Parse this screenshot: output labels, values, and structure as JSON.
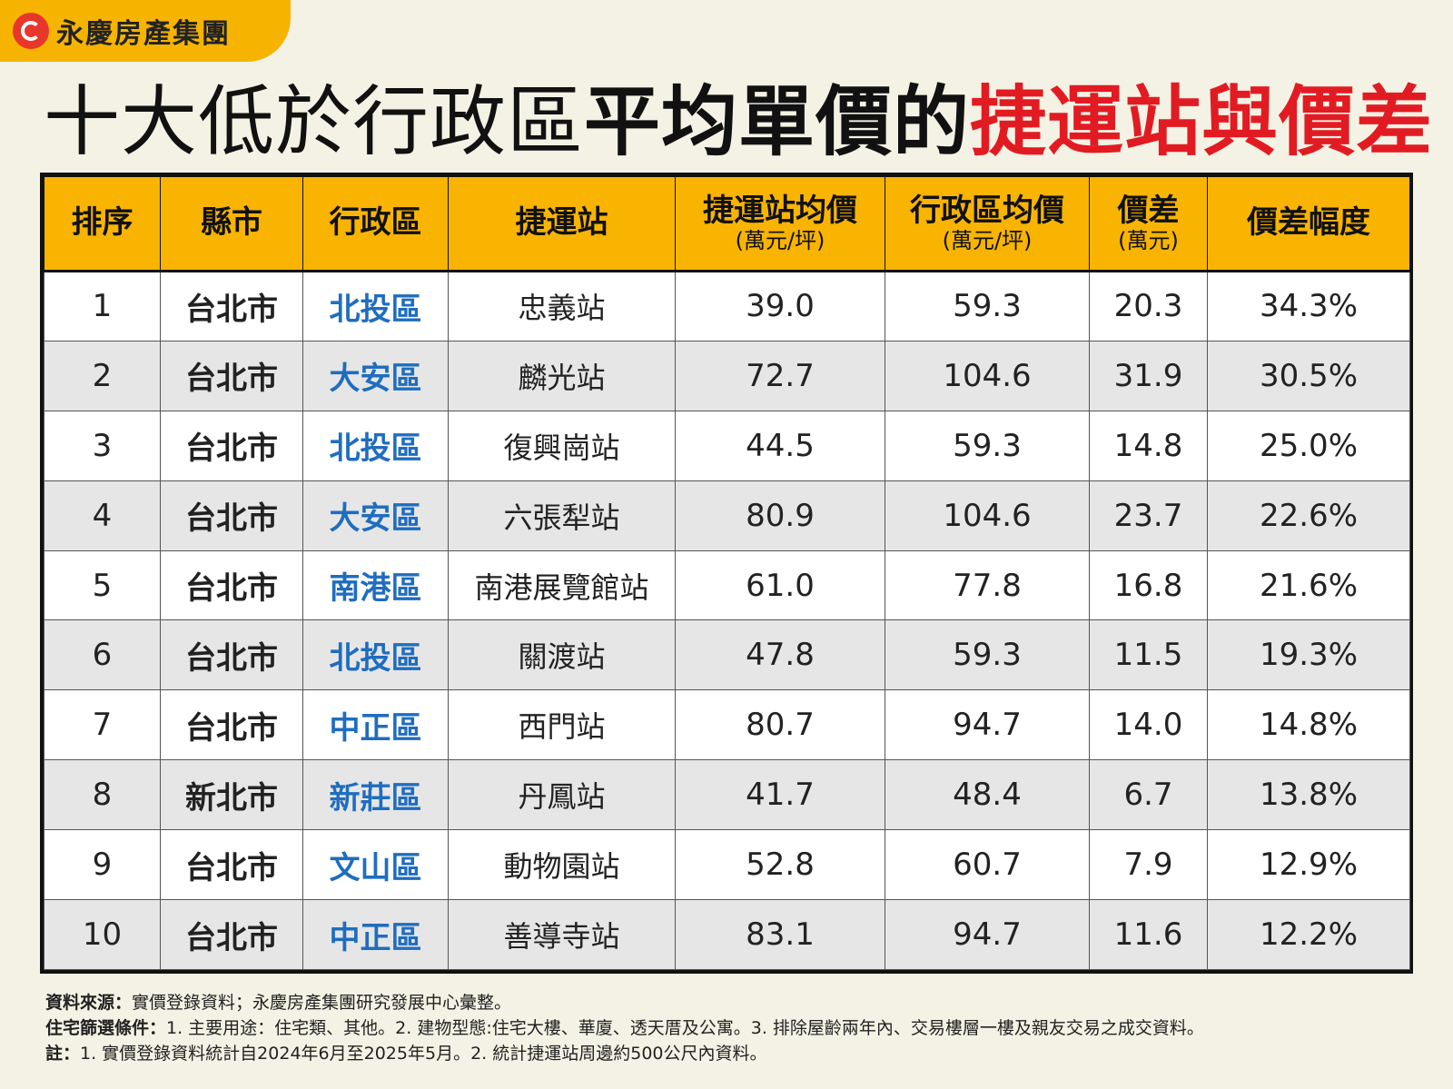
{
  "brand": {
    "name": "永慶房產集團",
    "logo_icon": "yungching-logo-icon",
    "color": "#f6b400"
  },
  "title": {
    "part1": "十大低於行政區",
    "part2": "平均單價的",
    "part3": "捷運站與價差",
    "accent_color": "#e21b23"
  },
  "table": {
    "header_color": "#f8b400",
    "district_color": "#1f6dbf",
    "headers": [
      {
        "label": "排序",
        "sub": ""
      },
      {
        "label": "縣市",
        "sub": ""
      },
      {
        "label": "行政區",
        "sub": ""
      },
      {
        "label": "捷運站",
        "sub": ""
      },
      {
        "label": "捷運站均價",
        "sub": "(萬元/坪)"
      },
      {
        "label": "行政區均價",
        "sub": "(萬元/坪)"
      },
      {
        "label": "價差",
        "sub": "(萬元)"
      },
      {
        "label": "價差幅度",
        "sub": ""
      }
    ],
    "rows": [
      {
        "rank": "1",
        "city": "台北市",
        "district": "北投區",
        "station": "忠義站",
        "station_price": "39.0",
        "district_price": "59.3",
        "diff": "20.3",
        "pct": "34.3%"
      },
      {
        "rank": "2",
        "city": "台北市",
        "district": "大安區",
        "station": "麟光站",
        "station_price": "72.7",
        "district_price": "104.6",
        "diff": "31.9",
        "pct": "30.5%"
      },
      {
        "rank": "3",
        "city": "台北市",
        "district": "北投區",
        "station": "復興崗站",
        "station_price": "44.5",
        "district_price": "59.3",
        "diff": "14.8",
        "pct": "25.0%"
      },
      {
        "rank": "4",
        "city": "台北市",
        "district": "大安區",
        "station": "六張犁站",
        "station_price": "80.9",
        "district_price": "104.6",
        "diff": "23.7",
        "pct": "22.6%"
      },
      {
        "rank": "5",
        "city": "台北市",
        "district": "南港區",
        "station": "南港展覽館站",
        "station_price": "61.0",
        "district_price": "77.8",
        "diff": "16.8",
        "pct": "21.6%"
      },
      {
        "rank": "6",
        "city": "台北市",
        "district": "北投區",
        "station": "關渡站",
        "station_price": "47.8",
        "district_price": "59.3",
        "diff": "11.5",
        "pct": "19.3%"
      },
      {
        "rank": "7",
        "city": "台北市",
        "district": "中正區",
        "station": "西門站",
        "station_price": "80.7",
        "district_price": "94.7",
        "diff": "14.0",
        "pct": "14.8%"
      },
      {
        "rank": "8",
        "city": "新北市",
        "district": "新莊區",
        "station": "丹鳳站",
        "station_price": "41.7",
        "district_price": "48.4",
        "diff": "6.7",
        "pct": "13.8%"
      },
      {
        "rank": "9",
        "city": "台北市",
        "district": "文山區",
        "station": "動物園站",
        "station_price": "52.8",
        "district_price": "60.7",
        "diff": "7.9",
        "pct": "12.9%"
      },
      {
        "rank": "10",
        "city": "台北市",
        "district": "中正區",
        "station": "善導寺站",
        "station_price": "83.1",
        "district_price": "94.7",
        "diff": "11.6",
        "pct": "12.2%"
      }
    ]
  },
  "notes": [
    {
      "label": "資料來源：",
      "text": "實價登錄資料；永慶房產集團研究發展中心彙整。"
    },
    {
      "label": "住宅篩選條件：",
      "text": "1. 主要用途：住宅類、其他。2. 建物型態:住宅大樓、華廈、透天厝及公寓。3. 排除屋齡兩年內、交易樓層一樓及親友交易之成交資料。"
    },
    {
      "label": "註：",
      "text": "1. 實價登錄資料統計自2024年6月至2025年5月。2. 統計捷運站周邊約500公尺內資料。"
    }
  ]
}
